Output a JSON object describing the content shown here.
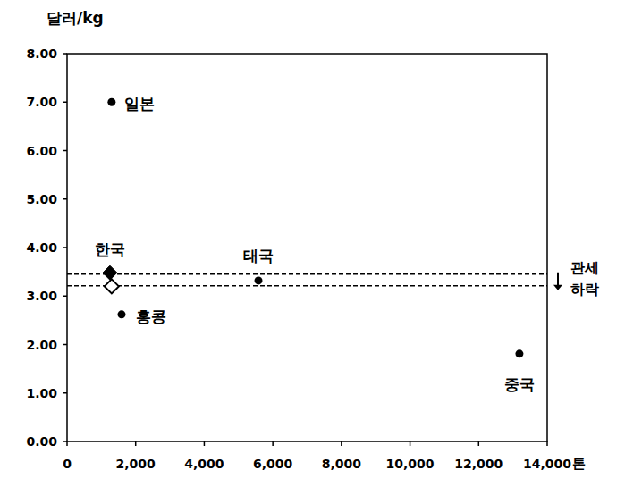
{
  "chart_data": {
    "type": "scatter",
    "x_label": "톤",
    "y_label": "달러/kg",
    "xlim": [
      0,
      14000
    ],
    "ylim": [
      0,
      8
    ],
    "xticks": [
      0,
      {
        "value": 2000,
        "label": "2,000"
      },
      {
        "value": 4000,
        "label": "4,000"
      },
      {
        "value": 6000,
        "label": "6,000"
      },
      {
        "value": 8000,
        "label": "8,000"
      },
      {
        "value": 10000,
        "label": "10,000"
      },
      {
        "value": 12000,
        "label": "12,000"
      },
      {
        "value": 14000,
        "label": "14,000"
      }
    ],
    "yticks": [
      {
        "value": 0,
        "label": "0.00"
      },
      {
        "value": 1,
        "label": "1.00"
      },
      {
        "value": 2,
        "label": "2.00"
      },
      {
        "value": 3,
        "label": "3.00"
      },
      {
        "value": 4,
        "label": "4.00"
      },
      {
        "value": 5,
        "label": "5.00"
      },
      {
        "value": 6,
        "label": "6.00"
      },
      {
        "value": 7,
        "label": "7.00"
      },
      {
        "value": 8,
        "label": "8.00"
      }
    ],
    "grid": false,
    "series": [
      {
        "marker": "circle",
        "color": "#000000",
        "x": [
          1300,
          5580,
          1590,
          13190
        ],
        "values": [
          7.0,
          3.32,
          2.62,
          1.81
        ],
        "labels": [
          "일본",
          "태국",
          "홍콩",
          "중국"
        ]
      },
      {
        "marker": "diamond",
        "color": "#000000",
        "x": [
          1250
        ],
        "values": [
          3.48
        ],
        "labels": [
          "한국"
        ]
      },
      {
        "marker": "diamond-open",
        "color": "#000000",
        "x": [
          1300
        ],
        "values": [
          3.2
        ]
      }
    ],
    "reference_lines": [
      {
        "value": 3.45,
        "line_style": "dashed"
      },
      {
        "value": 3.21,
        "line_style": "dashed"
      }
    ],
    "annotation": [
      "관세",
      "하락"
    ]
  }
}
